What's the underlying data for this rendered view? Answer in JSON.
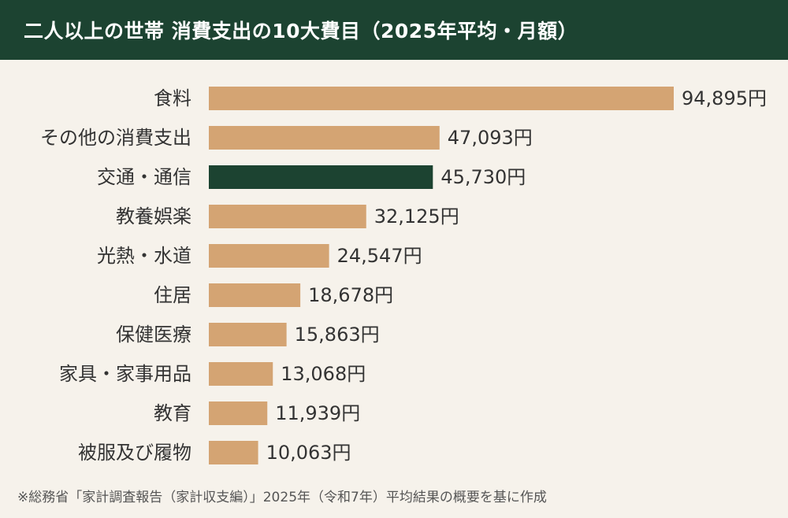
{
  "header": {
    "title": "二人以上の世帯 消費支出の10大費目（2025年平均・月額）"
  },
  "chart_data": {
    "type": "bar",
    "orientation": "horizontal",
    "title": "二人以上の世帯 消費支出の10大費目（2025年平均・月額）",
    "unit": "円",
    "categories": [
      "食料",
      "その他の消費支出",
      "交通・通信",
      "教養娯楽",
      "光熱・水道",
      "住居",
      "保健医療",
      "家具・家事用品",
      "教育",
      "被服及び履物"
    ],
    "values": [
      94895,
      47093,
      45730,
      32125,
      24547,
      18678,
      15863,
      13068,
      11939,
      10063
    ],
    "value_labels": [
      "94,895円",
      "47,093円",
      "45,730円",
      "32,125円",
      "24,547円",
      "18,678円",
      "15,863円",
      "13,068円",
      "11,939円",
      "10,063円"
    ],
    "highlight_index": 2,
    "colors": {
      "bar": "#d4a473",
      "highlight": "#1c4331"
    },
    "grid": false,
    "legend": "none"
  },
  "footer": {
    "note": "※総務省「家計調査報告（家計収支編）」2025年（令和7年）平均結果の概要を基に作成"
  }
}
